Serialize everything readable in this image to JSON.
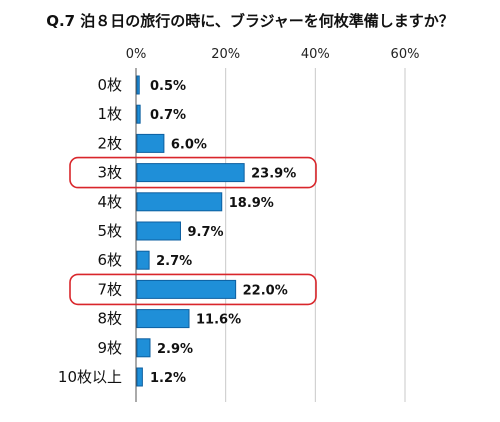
{
  "chart_data": {
    "type": "bar",
    "orientation": "horizontal",
    "title": "Q.7 泊８日の旅行の時に、ブラジャーを何枚準備しますか？",
    "categories": [
      "0枚",
      "1枚",
      "2枚",
      "3枚",
      "4枚",
      "5枚",
      "6枚",
      "7枚",
      "8枚",
      "9枚",
      "10枚以上"
    ],
    "values": [
      0.5,
      0.7,
      6.0,
      23.9,
      18.9,
      9.7,
      2.7,
      22.0,
      11.6,
      2.9,
      1.2
    ],
    "value_labels": [
      "0.5%",
      "0.7%",
      "6.0%",
      "23.9%",
      "18.9%",
      "9.7%",
      "2.7%",
      "22.0%",
      "11.6%",
      "2.9%",
      "1.2%"
    ],
    "x_ticks": [
      "0%",
      "20%",
      "40%",
      "60%"
    ],
    "xlim": [
      0,
      60
    ],
    "grid": true,
    "legend": "none",
    "highlighted": [
      "3枚",
      "7枚"
    ],
    "colors": {
      "bar": "#1f8fd8",
      "bar_edge": "#0d5fa0",
      "grid": "#c9c9c9",
      "highlight": "#d9262b"
    }
  }
}
